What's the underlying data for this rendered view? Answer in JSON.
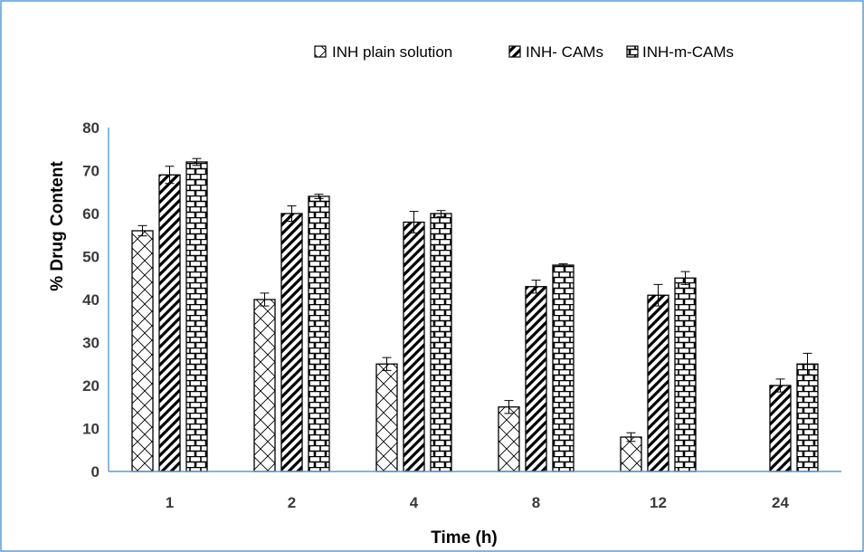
{
  "chart_data": {
    "type": "bar",
    "categories": [
      "1",
      "2",
      "4",
      "8",
      "12",
      "24"
    ],
    "series": [
      {
        "name": "INH plain solution",
        "pattern": "crosshatch",
        "values": [
          56,
          40,
          25,
          15,
          8,
          0
        ],
        "errors": [
          1.2,
          1.5,
          1.5,
          1.5,
          1.0,
          0
        ]
      },
      {
        "name": "INH- CAMs",
        "pattern": "diagonal",
        "values": [
          69,
          60,
          58,
          43,
          41,
          20
        ],
        "errors": [
          2.0,
          1.8,
          2.5,
          1.5,
          2.5,
          1.5
        ]
      },
      {
        "name": "INH-m-CAMs",
        "pattern": "brick",
        "values": [
          72,
          64,
          60,
          48,
          45,
          25
        ],
        "errors": [
          0.8,
          0.5,
          0.7,
          0.3,
          1.5,
          2.5
        ]
      }
    ],
    "xlabel": "Time (h)",
    "ylabel": "% Drug Content",
    "ylim": [
      0,
      80
    ],
    "yticks": [
      0,
      10,
      20,
      30,
      40,
      50,
      60,
      70,
      80
    ],
    "grid": false,
    "legend_position": "top-right",
    "colors": {
      "bar_stroke": "#000000",
      "axis": "#5b9bd5",
      "frame": "#5b9bd5",
      "tick_text": "#3a3a3a"
    }
  }
}
